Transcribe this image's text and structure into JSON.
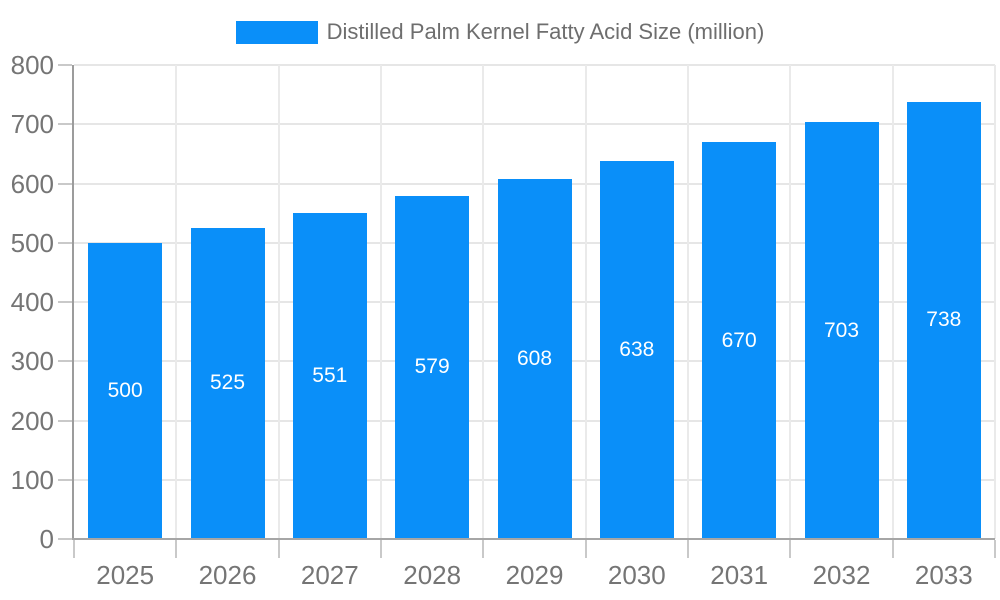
{
  "chart_data": {
    "type": "bar",
    "title": "",
    "xlabel": "",
    "ylabel": "",
    "categories": [
      "2025",
      "2026",
      "2027",
      "2028",
      "2029",
      "2030",
      "2031",
      "2032",
      "2033"
    ],
    "series": [
      {
        "name": "Distilled Palm Kernel Fatty Acid Size (million)",
        "values": [
          500,
          525,
          551,
          579,
          608,
          638,
          670,
          703,
          738
        ],
        "color": "#0a8ff9"
      }
    ],
    "ylim": [
      0,
      800
    ],
    "yticks": [
      0,
      100,
      200,
      300,
      400,
      500,
      600,
      700,
      800
    ],
    "grid": true,
    "legend_position": "top-center",
    "data_labels": {
      "position": "inside-center",
      "color": "#ffffff"
    }
  },
  "colors": {
    "bar": "#0a8ff9",
    "grid_horizontal": "#e6e6e6",
    "grid_vertical": "#eaeaea",
    "axis_line": "#a0a0a0",
    "tick": "#c9c9c9",
    "axis_label": "#757575",
    "legend_text": "#6e6e6e",
    "bar_label": "#ffffff",
    "background": "#ffffff"
  }
}
